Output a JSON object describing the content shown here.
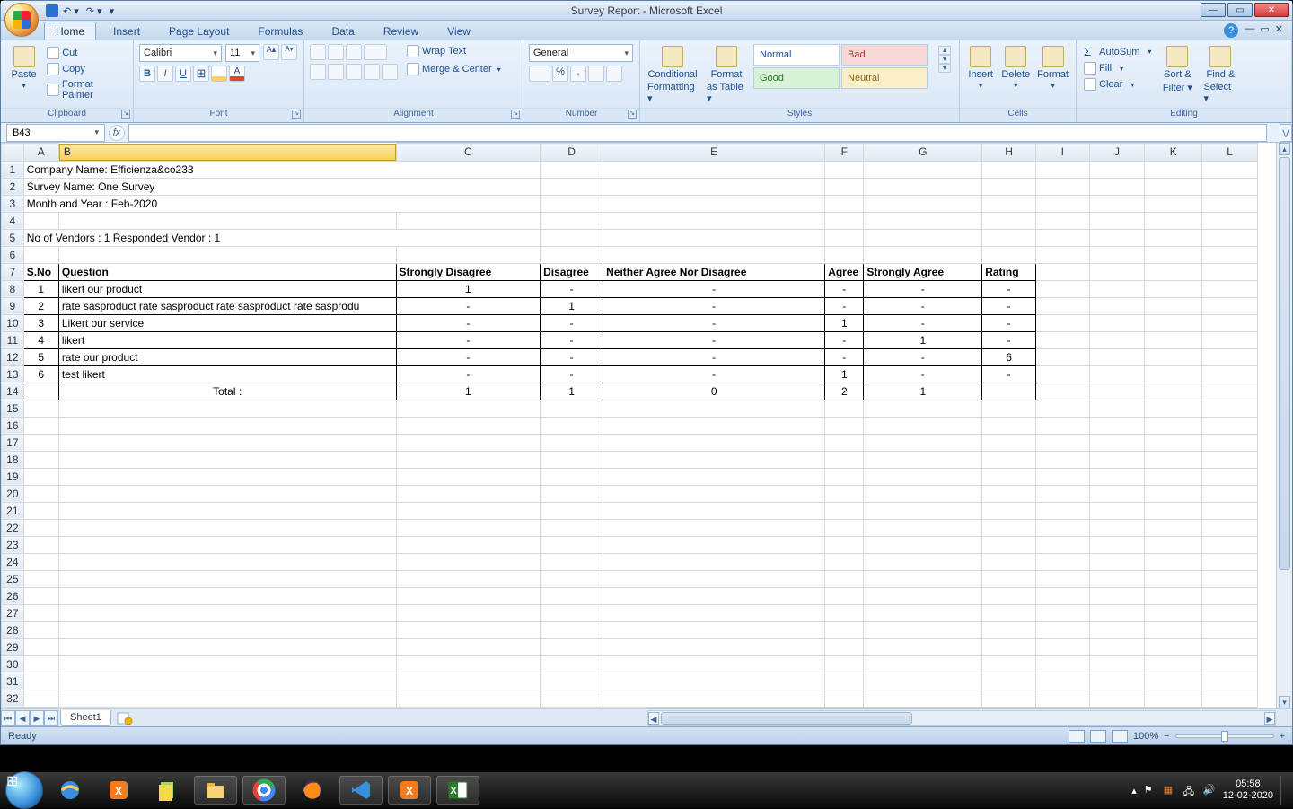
{
  "window": {
    "title": "Survey Report - Microsoft Excel",
    "app": "Microsoft Excel"
  },
  "tabs": {
    "items": [
      "Home",
      "Insert",
      "Page Layout",
      "Formulas",
      "Data",
      "Review",
      "View"
    ],
    "active": "Home"
  },
  "ribbon": {
    "clipboard": {
      "label": "Clipboard",
      "paste": "Paste",
      "cut": "Cut",
      "copy": "Copy",
      "format_painter": "Format Painter"
    },
    "font": {
      "label": "Font",
      "family": "Calibri",
      "size": "11"
    },
    "alignment": {
      "label": "Alignment",
      "wrap": "Wrap Text",
      "merge": "Merge & Center"
    },
    "number": {
      "label": "Number",
      "format": "General"
    },
    "styles": {
      "label": "Styles",
      "cond": "Conditional",
      "cond2": "Formatting",
      "tbl": "Format",
      "tbl2": "as Table",
      "cells": [
        "Normal",
        "Bad",
        "Good",
        "Neutral"
      ]
    },
    "cells": {
      "label": "Cells",
      "insert": "Insert",
      "delete": "Delete",
      "format": "Format"
    },
    "editing": {
      "label": "Editing",
      "autosum": "AutoSum",
      "fill": "Fill",
      "clear": "Clear",
      "sort": "Sort &",
      "sort2": "Filter",
      "find": "Find &",
      "find2": "Select"
    }
  },
  "namebox": "B43",
  "columns": [
    "A",
    "B",
    "C",
    "D",
    "E",
    "F",
    "G",
    "H",
    "I",
    "J",
    "K",
    "L"
  ],
  "widths": [
    38,
    365,
    156,
    68,
    240,
    42,
    128,
    58,
    58,
    60,
    62,
    60
  ],
  "selected_col": "B",
  "rows": 32,
  "meta": {
    "company": "Company Name: Efficienza&co233",
    "survey": "Survey Name: One Survey",
    "month": "Month and Year  : Feb-2020",
    "vendors": "No of Vendors : 1   Responded Vendor : 1"
  },
  "table": {
    "headers": [
      "S.No",
      "Question",
      "Strongly Disagree",
      "Disagree",
      "Neither Agree Nor Disagree",
      "Agree",
      "Strongly Agree",
      "Rating"
    ],
    "rows": [
      [
        "1",
        "likert our product",
        "1",
        "-",
        "-",
        "-",
        "-",
        "-"
      ],
      [
        "2",
        "rate sasproduct rate sasproduct rate sasproduct rate sasprodu",
        "-",
        "1",
        "-",
        "-",
        "-",
        "-"
      ],
      [
        "3",
        "Likert our service",
        "-",
        "-",
        "-",
        "1",
        "-",
        "-"
      ],
      [
        "4",
        "likert",
        "-",
        "-",
        "-",
        "-",
        "1",
        "-"
      ],
      [
        "5",
        "rate our product",
        "-",
        "-",
        "-",
        "-",
        "-",
        "6"
      ],
      [
        "6",
        "test likert",
        "-",
        "-",
        "-",
        "1",
        "-",
        "-"
      ]
    ],
    "total_label": "Total :",
    "totals": [
      "1",
      "1",
      "0",
      "2",
      "1",
      ""
    ]
  },
  "sheet_tab": "Sheet1",
  "status": {
    "ready": "Ready",
    "zoom": "100%"
  },
  "system": {
    "time": "05:58",
    "date": "12-02-2020"
  },
  "colors": {
    "pane": "#dbe6f4",
    "ribbon": "#e8f1fb",
    "accent": "#3a8edb",
    "grid_border": "#d4d9de",
    "sel_col": "#fbcf5f"
  }
}
